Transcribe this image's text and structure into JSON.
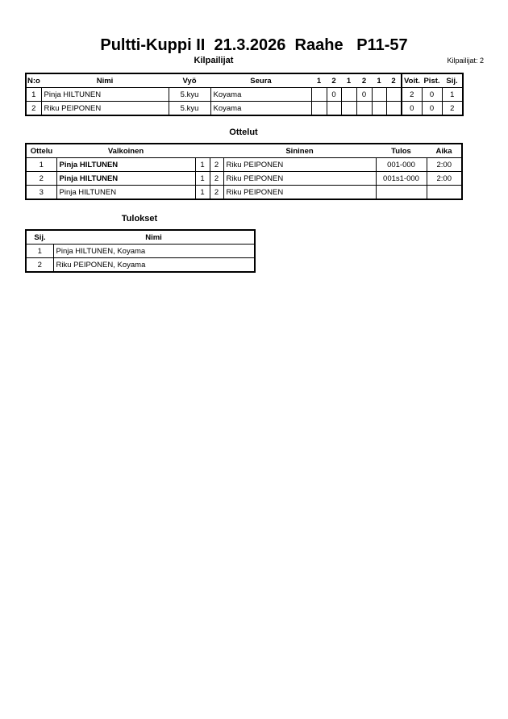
{
  "title": "Pultti-Kuppi II  21.3.2026  Raahe   P11-57",
  "competitors": {
    "heading": "Kilpailijat",
    "count_label": "Kilpailijat: 2",
    "columns": [
      "N:o",
      "Nimi",
      "Vyö",
      "Seura",
      "1",
      "2",
      "1",
      "2",
      "1",
      "2",
      "Voit.",
      "Pist.",
      "Sij."
    ],
    "rows": [
      {
        "no": "1",
        "name": "Pinja HILTUNEN",
        "belt": "5.kyu",
        "club": "Koyama",
        "scores": [
          "",
          "0",
          "",
          "0",
          "",
          ""
        ],
        "wins": "2",
        "points": "0",
        "rank": "1"
      },
      {
        "no": "2",
        "name": "Riku PEIPONEN",
        "belt": "5.kyu",
        "club": "Koyama",
        "scores": [
          "",
          "",
          "",
          "",
          "",
          ""
        ],
        "wins": "0",
        "points": "0",
        "rank": "2"
      }
    ]
  },
  "matches": {
    "heading": "Ottelut",
    "columns": [
      "Ottelu",
      "Valkoinen",
      "Sininen",
      "Tulos",
      "Aika"
    ],
    "rows": [
      {
        "no": "1",
        "white": "Pinja HILTUNEN",
        "white_bold": true,
        "n1": "1",
        "n2": "2",
        "blue": "Riku PEIPONEN",
        "result": "001-000",
        "time": "2:00"
      },
      {
        "no": "2",
        "white": "Pinja HILTUNEN",
        "white_bold": true,
        "n1": "1",
        "n2": "2",
        "blue": "Riku PEIPONEN",
        "result": "001s1-000",
        "time": "2:00"
      },
      {
        "no": "3",
        "white": "Pinja HILTUNEN",
        "white_bold": false,
        "n1": "1",
        "n2": "2",
        "blue": "Riku PEIPONEN",
        "result": "",
        "time": ""
      }
    ]
  },
  "results": {
    "heading": "Tulokset",
    "columns": [
      "Sij.",
      "Nimi"
    ],
    "rows": [
      {
        "rank": "1",
        "name": "Pinja HILTUNEN, Koyama"
      },
      {
        "rank": "2",
        "name": "Riku PEIPONEN, Koyama"
      }
    ]
  }
}
